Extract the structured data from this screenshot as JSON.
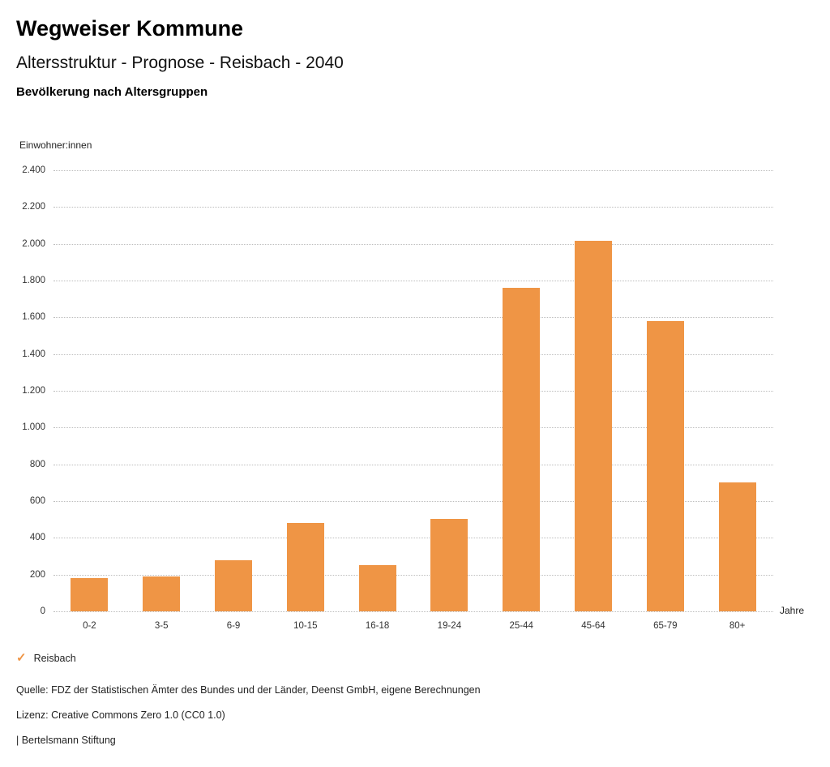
{
  "header": {
    "title": "Wegweiser Kommune",
    "subtitle": "Altersstruktur - Prognose - Reisbach - 2040",
    "caption": "Bevölkerung nach Altersgruppen"
  },
  "chart_data": {
    "type": "bar",
    "title": "Bevölkerung nach Altersgruppen",
    "ylabel": "Einwohner:innen",
    "xlabel": "Jahre",
    "categories": [
      "0-2",
      "3-5",
      "6-9",
      "10-15",
      "16-18",
      "19-24",
      "25-44",
      "45-64",
      "65-79",
      "80+"
    ],
    "series": [
      {
        "name": "Reisbach",
        "values": [
          180,
          190,
          280,
          480,
          250,
          505,
          1760,
          2015,
          1580,
          700
        ]
      }
    ],
    "ylim": [
      0,
      2400
    ],
    "ytick_step": 200,
    "ytick_labels": [
      "0",
      "200",
      "400",
      "600",
      "800",
      "1.000",
      "1.200",
      "1.400",
      "1.600",
      "1.800",
      "2.000",
      "2.200",
      "2.400"
    ],
    "grid": "horizontal-dotted",
    "legend_position": "bottom-left",
    "bar_color": "#EF9545"
  },
  "legend": {
    "check_icon": "✓",
    "label": "Reisbach"
  },
  "footer": {
    "source": "Quelle: FDZ der Statistischen Ämter des Bundes und der Länder, Deenst GmbH, eigene Berechnungen",
    "license": "Lizenz: Creative Commons Zero 1.0 (CC0 1.0)",
    "brand": "| Bertelsmann Stiftung"
  }
}
